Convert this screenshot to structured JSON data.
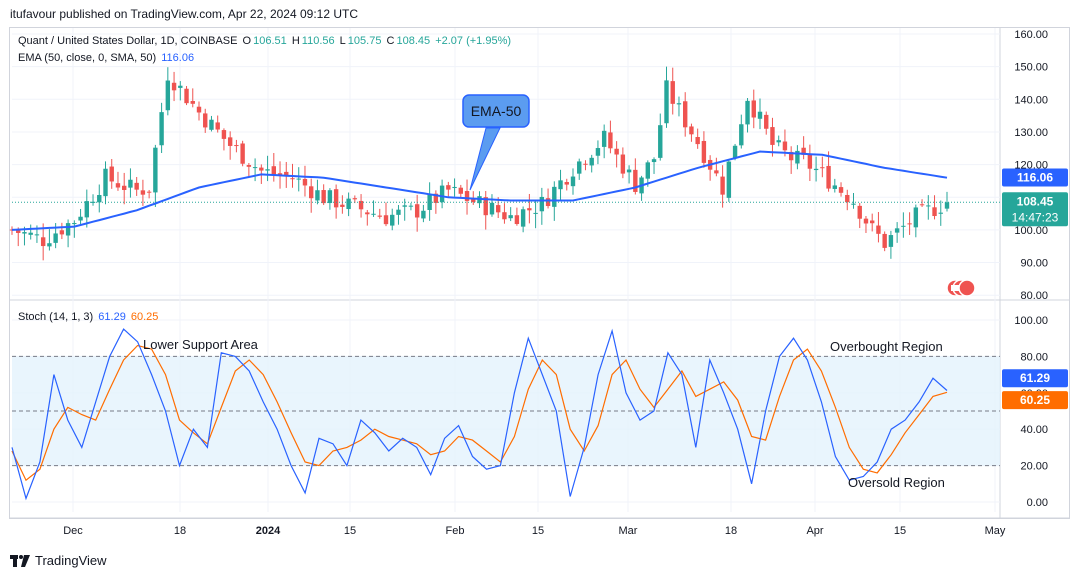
{
  "header": {
    "published": "itufavour published on TradingView.com, Apr 22, 2024 09:12 UTC"
  },
  "legend": {
    "symbol": "Quant / United States Dollar, 1D, COINBASE",
    "o_label": "O",
    "o": "106.51",
    "h_label": "H",
    "h": "110.56",
    "l_label": "L",
    "l": "105.75",
    "c_label": "C",
    "c": "108.45",
    "change": "+2.07 (+1.95%)",
    "ema_label": "EMA (50, close, 0, SMA, 50)",
    "ema_value": "116.06",
    "stoch_label": "Stoch (14, 1, 3)",
    "stoch_k": "61.29",
    "stoch_d": "60.25"
  },
  "annotations": {
    "ema_callout": "EMA-50",
    "lower_support": "Lower Support Area",
    "overbought": "Overbought Region",
    "oversold": "Oversold Region"
  },
  "price_tags": {
    "ema": "116.06",
    "price": "108.45",
    "countdown": "14:47:23",
    "stoch_k": "61.29",
    "stoch_d": "60.25"
  },
  "footer": {
    "brand": "TradingView"
  },
  "colors": {
    "up": "#26a69a",
    "down": "#ef5350",
    "ema": "#2962ff",
    "stoch_k": "#2962ff",
    "stoch_d": "#ff6d00",
    "band": "#e3f2fd",
    "callout": "#5b9cf0"
  },
  "chart_data": [
    {
      "type": "candlestick",
      "title": "Quant / United States Dollar, 1D, COINBASE",
      "x_ticks": [
        "Dec",
        "18",
        "2024",
        "15",
        "Feb",
        "15",
        "Mar",
        "18",
        "Apr",
        "15",
        "May"
      ],
      "y_ticks": [
        "160.00",
        "150.00",
        "140.00",
        "130.00",
        "120.00",
        "110.00",
        "100.00",
        "90.00",
        "80.00"
      ],
      "ylim": [
        78,
        163
      ],
      "series": [
        {
          "name": "EMA (50, close, 0, SMA, 50)",
          "x": [
            0,
            10,
            20,
            30,
            40,
            50,
            60,
            70,
            80,
            90,
            100,
            110,
            120,
            130,
            140,
            150
          ],
          "values": [
            100,
            101,
            106,
            113,
            117,
            116,
            113,
            110,
            109,
            109,
            113,
            119,
            124,
            123,
            119,
            116
          ]
        }
      ],
      "ohlc_anchors": {
        "x": [
          0,
          5,
          10,
          15,
          20,
          22,
          25,
          30,
          35,
          40,
          45,
          50,
          55,
          60,
          65,
          70,
          75,
          80,
          85,
          90,
          95,
          100,
          103,
          105,
          110,
          114,
          118,
          122,
          125,
          127,
          130,
          135,
          138,
          140,
          145,
          150
        ],
        "close": [
          100,
          97,
          103,
          116,
          112,
          113,
          148,
          136,
          126,
          118,
          116,
          110,
          107,
          104,
          106,
          112,
          108,
          104,
          108,
          119,
          128,
          114,
          122,
          143,
          127,
          113,
          141,
          126,
          122,
          121,
          117,
          109,
          100,
          96,
          104,
          108.45
        ]
      }
    },
    {
      "type": "line",
      "title": "Stoch (14, 1, 3)",
      "y_ticks": [
        "100.00",
        "80.00",
        "60.00",
        "40.00",
        "20.00",
        "0.00"
      ],
      "ylim": [
        -5,
        105
      ],
      "bands": [
        20,
        80
      ],
      "series": [
        {
          "name": "Stoch K",
          "values": [
            30,
            2,
            22,
            70,
            45,
            30,
            55,
            80,
            95,
            88,
            70,
            50,
            20,
            40,
            30,
            82,
            80,
            72,
            55,
            40,
            20,
            5,
            35,
            32,
            20,
            45,
            38,
            28,
            35,
            30,
            15,
            35,
            42,
            25,
            18,
            20,
            60,
            90,
            70,
            50,
            3,
            30,
            70,
            94,
            60,
            45,
            50,
            82,
            70,
            30,
            78,
            60,
            40,
            10,
            50,
            80,
            90,
            78,
            55,
            25,
            12,
            14,
            22,
            40,
            45,
            55,
            68,
            61.29
          ]
        },
        {
          "name": "Stoch D",
          "values": [
            28,
            12,
            18,
            40,
            52,
            48,
            45,
            62,
            78,
            86,
            84,
            70,
            45,
            38,
            32,
            52,
            72,
            78,
            70,
            55,
            38,
            22,
            20,
            28,
            30,
            34,
            40,
            36,
            34,
            32,
            26,
            28,
            36,
            34,
            28,
            22,
            36,
            62,
            78,
            70,
            40,
            28,
            42,
            70,
            78,
            62,
            52,
            62,
            72,
            58,
            62,
            66,
            56,
            36,
            34,
            58,
            78,
            84,
            72,
            52,
            30,
            18,
            16,
            26,
            38,
            48,
            58,
            60.25
          ]
        }
      ]
    }
  ]
}
